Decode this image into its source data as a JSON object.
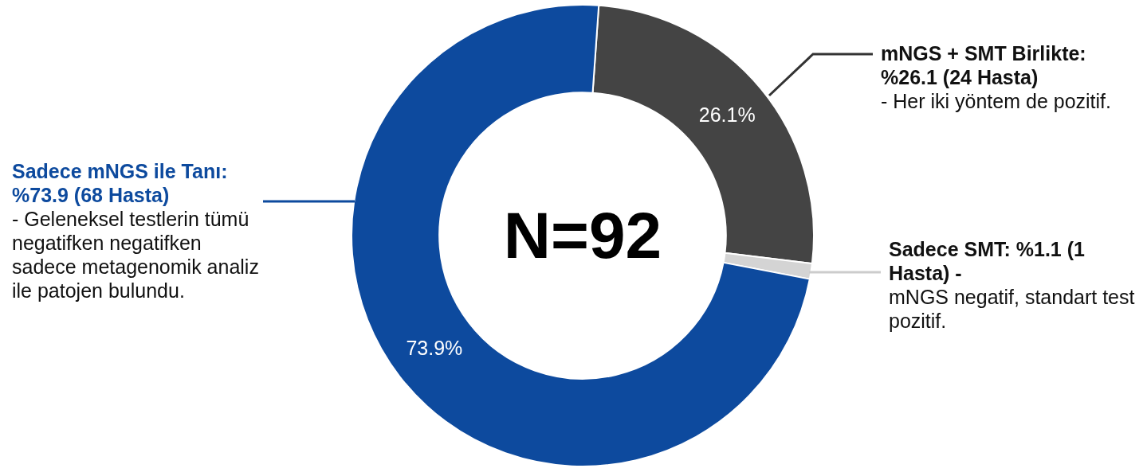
{
  "chart_data": {
    "type": "donut",
    "title": "N=92",
    "categories": [
      "mNGS + SMT Birlikte: %26.1 (24 Hasta)",
      "Sadece SMT: %1.1 (1 Hasta) -",
      "Sadece mNGS ile Tanı: %73.9 (68 Hasta)"
    ],
    "values": [
      26.1,
      1.1,
      73.9
    ],
    "colors": [
      "#444444",
      "#d4d4d4",
      "#0d4a9e"
    ],
    "value_labels": [
      "26.1%",
      null,
      "73.9%"
    ],
    "annotations": [
      "- Her iki yöntem de pozitif.",
      "mNGS negatif, standart test pozitif.",
      "- Geleneksel testlerin tümü negatifken negatifken sadece metagenomik analiz ile patojen bulundu."
    ],
    "legend": false
  }
}
